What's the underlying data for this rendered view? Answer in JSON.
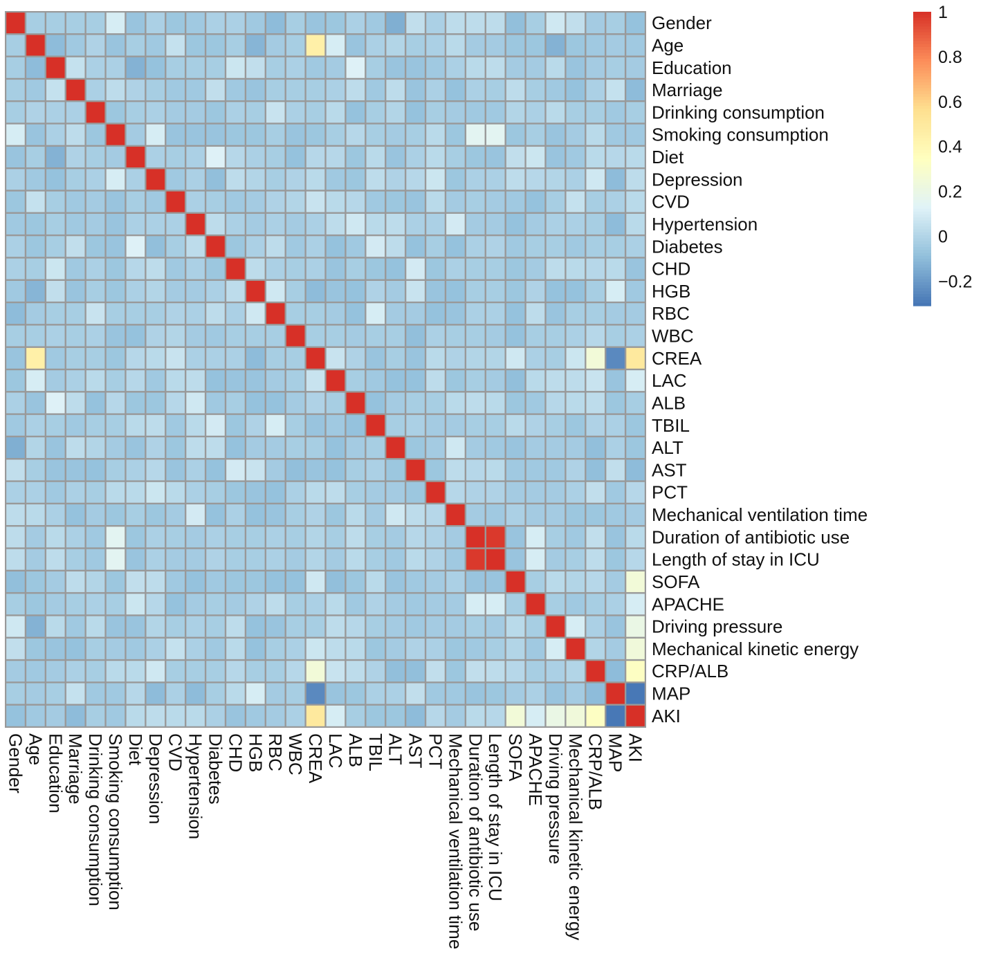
{
  "chart_data": {
    "type": "heatmap",
    "title": "",
    "row_labels": [
      "Gender",
      "Age",
      "Education",
      "Marriage",
      "Drinking consumption",
      "Smoking consumption",
      "Diet",
      "Depression",
      "CVD",
      "Hypertension",
      "Diabetes",
      "CHD",
      "HGB",
      "RBC",
      "WBC",
      "CREA",
      "LAC",
      "ALB",
      "TBIL",
      "ALT",
      "AST",
      "PCT",
      "Mechanical ventilation time",
      "Duration of antibiotic use",
      "Length of stay in ICU",
      "SOFA",
      "APACHE",
      "Driving pressure",
      "Mechanical kinetic energy",
      "CRP/ALB",
      "MAP",
      "AKI"
    ],
    "col_labels": [
      "Gender",
      "Age",
      "Education",
      "Marriage",
      "Drinking consumption",
      "Smoking consumption",
      "Diet",
      "Depression",
      "CVD",
      "Hypertension",
      "Diabetes",
      "CHD",
      "HGB",
      "RBC",
      "WBC",
      "CREA",
      "LAC",
      "ALB",
      "TBIL",
      "ALT",
      "AST",
      "PCT",
      "Mechanical ventilation time",
      "Duration of antibiotic use",
      "Length of stay in ICU",
      "SOFA",
      "APACHE",
      "Driving pressure",
      "Mechanical kinetic energy",
      "CRP/ALB",
      "MAP",
      "AKI"
    ],
    "values": [
      [
        1,
        -0.03,
        -0.03,
        -0.03,
        -0.03,
        0.1,
        -0.07,
        -0.02,
        -0.06,
        -0.05,
        -0.02,
        -0.02,
        -0.05,
        -0.1,
        -0.03,
        -0.07,
        -0.06,
        -0.02,
        -0.05,
        -0.14,
        0.04,
        -0.02,
        0.03,
        0.03,
        0.03,
        -0.09,
        -0.03,
        0.08,
        0.04,
        -0.04,
        -0.03,
        -0.08
      ],
      [
        -0.03,
        1,
        -0.1,
        -0.05,
        -0.01,
        -0.07,
        -0.03,
        -0.05,
        0.05,
        -0.06,
        -0.06,
        -0.03,
        -0.12,
        -0.04,
        -0.03,
        0.45,
        0.1,
        -0.07,
        -0.02,
        0.0,
        -0.03,
        -0.02,
        0.02,
        -0.04,
        -0.04,
        -0.06,
        -0.06,
        -0.13,
        -0.06,
        -0.05,
        -0.04,
        -0.05
      ],
      [
        -0.03,
        -0.1,
        1,
        0.05,
        -0.02,
        -0.02,
        -0.13,
        -0.08,
        -0.03,
        -0.03,
        -0.03,
        0.07,
        0.04,
        -0.03,
        -0.02,
        -0.05,
        -0.04,
        0.12,
        -0.03,
        -0.07,
        -0.07,
        -0.05,
        -0.02,
        0.02,
        0.03,
        -0.04,
        -0.04,
        0.02,
        -0.07,
        -0.04,
        -0.03,
        -0.04
      ],
      [
        -0.03,
        -0.05,
        0.05,
        1,
        -0.02,
        0.03,
        -0.01,
        -0.03,
        -0.05,
        -0.05,
        0.04,
        -0.05,
        -0.07,
        -0.03,
        -0.03,
        -0.03,
        -0.02,
        0.03,
        -0.05,
        0.03,
        -0.07,
        -0.02,
        -0.08,
        -0.02,
        -0.03,
        0.03,
        -0.03,
        -0.05,
        -0.08,
        -0.02,
        0.05,
        -0.1
      ],
      [
        -0.03,
        -0.01,
        -0.02,
        -0.02,
        1,
        -0.06,
        -0.03,
        -0.02,
        -0.04,
        -0.04,
        -0.06,
        -0.02,
        -0.03,
        0.06,
        -0.02,
        -0.03,
        0.02,
        -0.08,
        -0.03,
        0.0,
        -0.08,
        -0.03,
        -0.04,
        -0.05,
        -0.05,
        0.0,
        -0.02,
        0.02,
        -0.03,
        -0.03,
        -0.05,
        -0.03
      ],
      [
        0.1,
        -0.07,
        -0.02,
        0.03,
        -0.06,
        1,
        -0.04,
        0.1,
        -0.07,
        -0.07,
        -0.07,
        -0.06,
        -0.06,
        -0.03,
        -0.07,
        -0.06,
        -0.03,
        0.01,
        -0.03,
        -0.04,
        -0.03,
        0.02,
        -0.06,
        0.15,
        0.15,
        -0.06,
        -0.03,
        -0.07,
        -0.04,
        0.02,
        -0.05,
        -0.05
      ],
      [
        -0.07,
        -0.03,
        -0.13,
        -0.01,
        -0.03,
        -0.04,
        1,
        -0.02,
        -0.03,
        -0.02,
        0.12,
        0.01,
        -0.02,
        -0.03,
        -0.08,
        0.01,
        0.01,
        -0.06,
        0.02,
        -0.07,
        -0.02,
        0.02,
        -0.03,
        -0.06,
        -0.07,
        0.04,
        0.07,
        -0.07,
        -0.05,
        0.02,
        0.01,
        0.02
      ],
      [
        -0.02,
        -0.05,
        -0.08,
        -0.03,
        -0.02,
        0.1,
        -0.02,
        1,
        -0.05,
        -0.02,
        -0.09,
        0.03,
        0.0,
        -0.03,
        -0.01,
        0.02,
        -0.05,
        -0.06,
        0.03,
        -0.01,
        0.01,
        0.07,
        -0.06,
        -0.02,
        -0.02,
        0.03,
        0.01,
        0.0,
        -0.02,
        0.08,
        -0.1,
        0.03
      ],
      [
        -0.06,
        0.05,
        -0.03,
        -0.05,
        -0.04,
        -0.07,
        -0.03,
        -0.05,
        1,
        -0.02,
        -0.03,
        -0.05,
        -0.04,
        -0.01,
        0.0,
        0.06,
        0.02,
        0.01,
        -0.05,
        -0.06,
        -0.07,
        0.02,
        -0.04,
        -0.03,
        -0.04,
        -0.05,
        -0.08,
        -0.03,
        0.05,
        -0.03,
        -0.02,
        0.02
      ],
      [
        -0.05,
        -0.06,
        -0.03,
        -0.05,
        -0.04,
        -0.07,
        -0.02,
        -0.02,
        -0.02,
        1,
        0.03,
        -0.02,
        -0.04,
        -0.02,
        -0.04,
        -0.02,
        0.03,
        0.08,
        0.02,
        0.03,
        -0.02,
        -0.02,
        0.09,
        -0.04,
        -0.04,
        -0.08,
        -0.04,
        -0.02,
        -0.02,
        -0.03,
        -0.1,
        0.02
      ],
      [
        -0.02,
        -0.06,
        -0.03,
        0.04,
        -0.06,
        -0.07,
        0.12,
        -0.09,
        -0.03,
        0.03,
        1,
        -0.06,
        -0.02,
        0.03,
        -0.05,
        -0.02,
        -0.08,
        -0.05,
        0.09,
        0.03,
        -0.08,
        -0.03,
        -0.08,
        -0.02,
        -0.01,
        -0.05,
        -0.03,
        -0.03,
        -0.05,
        -0.03,
        -0.03,
        -0.02
      ],
      [
        -0.02,
        -0.03,
        0.07,
        -0.05,
        -0.02,
        -0.06,
        0.01,
        0.03,
        -0.05,
        -0.02,
        -0.06,
        1,
        0.03,
        -0.02,
        -0.03,
        -0.02,
        -0.07,
        -0.03,
        -0.06,
        -0.08,
        0.09,
        -0.06,
        -0.02,
        -0.03,
        -0.03,
        -0.06,
        -0.04,
        0.03,
        0.02,
        0.01,
        0.02,
        -0.07
      ],
      [
        -0.05,
        -0.12,
        0.04,
        -0.07,
        -0.03,
        -0.06,
        -0.02,
        0.0,
        -0.04,
        -0.04,
        -0.02,
        0.03,
        1,
        0.08,
        -0.03,
        -0.1,
        -0.07,
        -0.08,
        -0.01,
        -0.04,
        0.06,
        -0.07,
        -0.08,
        -0.03,
        -0.03,
        -0.06,
        -0.01,
        -0.08,
        -0.08,
        -0.03,
        0.1,
        -0.05
      ],
      [
        -0.1,
        -0.04,
        -0.03,
        -0.03,
        0.06,
        -0.03,
        -0.03,
        -0.03,
        -0.01,
        -0.02,
        0.03,
        -0.02,
        0.08,
        1,
        -0.03,
        -0.03,
        -0.04,
        -0.08,
        0.1,
        -0.04,
        -0.04,
        -0.08,
        -0.07,
        -0.02,
        -0.02,
        -0.08,
        0.03,
        -0.07,
        -0.03,
        -0.03,
        -0.04,
        -0.04
      ],
      [
        -0.03,
        -0.03,
        -0.02,
        -0.03,
        -0.02,
        -0.07,
        -0.08,
        -0.01,
        0.0,
        -0.04,
        -0.05,
        -0.03,
        -0.03,
        -0.03,
        1,
        -0.03,
        -0.03,
        -0.04,
        -0.03,
        -0.03,
        -0.09,
        -0.02,
        -0.03,
        -0.03,
        -0.04,
        -0.08,
        -0.03,
        -0.03,
        -0.02,
        0.01,
        -0.03,
        -0.02
      ],
      [
        -0.07,
        0.45,
        -0.05,
        -0.03,
        -0.03,
        -0.06,
        0.01,
        0.02,
        0.06,
        -0.02,
        -0.02,
        -0.02,
        -0.1,
        -0.03,
        -0.03,
        1,
        0.06,
        -0.01,
        -0.07,
        -0.03,
        -0.07,
        0.02,
        -0.01,
        0.0,
        0.0,
        0.08,
        -0.02,
        -0.03,
        0.07,
        0.25,
        -0.25,
        0.5
      ],
      [
        -0.06,
        0.1,
        -0.04,
        -0.02,
        0.02,
        -0.03,
        0.01,
        -0.05,
        0.02,
        0.03,
        -0.08,
        -0.07,
        -0.07,
        -0.04,
        -0.03,
        0.06,
        1,
        -0.03,
        -0.05,
        -0.08,
        -0.08,
        0.03,
        -0.06,
        -0.03,
        -0.04,
        -0.09,
        0.02,
        0.03,
        0.03,
        0.06,
        -0.07,
        0.1
      ],
      [
        -0.02,
        -0.07,
        0.12,
        0.03,
        -0.08,
        0.01,
        -0.06,
        -0.06,
        0.01,
        0.08,
        -0.05,
        -0.03,
        -0.08,
        -0.08,
        -0.04,
        -0.01,
        -0.03,
        1,
        -0.08,
        -0.04,
        -0.03,
        -0.03,
        0.02,
        0.03,
        0.02,
        -0.06,
        -0.05,
        0.01,
        0.02,
        0.03,
        -0.06,
        -0.03
      ],
      [
        -0.05,
        -0.02,
        -0.03,
        -0.05,
        -0.03,
        -0.03,
        0.02,
        0.03,
        -0.05,
        0.02,
        0.09,
        -0.06,
        -0.01,
        0.1,
        -0.03,
        -0.07,
        -0.05,
        -0.08,
        1,
        -0.03,
        -0.02,
        -0.04,
        -0.04,
        -0.03,
        -0.03,
        0.02,
        -0.01,
        -0.03,
        -0.06,
        -0.01,
        -0.02,
        -0.06
      ],
      [
        -0.14,
        0.0,
        -0.07,
        0.03,
        0.0,
        -0.04,
        -0.07,
        -0.01,
        -0.06,
        0.03,
        0.03,
        -0.08,
        -0.04,
        -0.04,
        -0.03,
        -0.03,
        -0.08,
        -0.04,
        -0.03,
        1,
        -0.06,
        -0.04,
        0.08,
        -0.04,
        -0.05,
        -0.07,
        -0.04,
        -0.04,
        -0.04,
        -0.09,
        -0.02,
        -0.06
      ],
      [
        0.04,
        -0.03,
        -0.07,
        -0.07,
        -0.08,
        -0.03,
        -0.02,
        0.01,
        -0.07,
        -0.02,
        -0.08,
        0.09,
        0.06,
        -0.04,
        -0.09,
        -0.07,
        -0.08,
        -0.03,
        -0.02,
        -0.06,
        1,
        -0.06,
        0.03,
        0.01,
        0.02,
        -0.05,
        -0.05,
        -0.05,
        -0.01,
        -0.09,
        0.04,
        -0.1
      ],
      [
        -0.02,
        -0.02,
        -0.05,
        -0.02,
        -0.03,
        0.02,
        0.02,
        0.07,
        0.02,
        -0.02,
        -0.03,
        -0.06,
        -0.07,
        -0.08,
        -0.02,
        0.02,
        0.03,
        -0.03,
        -0.04,
        -0.04,
        -0.06,
        1,
        0.01,
        -0.01,
        -0.01,
        -0.04,
        -0.04,
        -0.04,
        -0.02,
        0.04,
        -0.05,
        0.01
      ],
      [
        0.03,
        0.02,
        -0.02,
        -0.08,
        -0.04,
        -0.06,
        -0.03,
        -0.06,
        -0.04,
        0.09,
        -0.08,
        -0.02,
        -0.08,
        -0.07,
        -0.03,
        -0.01,
        -0.06,
        0.02,
        -0.04,
        0.08,
        0.03,
        0.01,
        1,
        -0.04,
        -0.05,
        -0.02,
        -0.04,
        -0.04,
        -0.06,
        -0.06,
        -0.05,
        -0.04
      ],
      [
        0.03,
        -0.04,
        0.02,
        -0.02,
        -0.05,
        0.15,
        -0.06,
        -0.02,
        -0.03,
        -0.04,
        -0.02,
        -0.03,
        -0.03,
        -0.02,
        -0.03,
        0.0,
        -0.03,
        0.03,
        -0.03,
        -0.04,
        0.01,
        -0.01,
        -0.04,
        1,
        0.98,
        -0.07,
        0.1,
        -0.03,
        -0.05,
        0.04,
        -0.07,
        0.02
      ],
      [
        0.03,
        -0.04,
        0.03,
        -0.03,
        -0.05,
        0.15,
        -0.07,
        -0.02,
        -0.04,
        -0.04,
        -0.01,
        -0.03,
        -0.03,
        -0.02,
        -0.04,
        0.0,
        -0.04,
        0.02,
        -0.03,
        -0.05,
        0.02,
        -0.01,
        -0.05,
        0.98,
        1,
        -0.07,
        0.1,
        -0.04,
        -0.03,
        0.03,
        -0.06,
        0.01
      ],
      [
        -0.09,
        -0.06,
        -0.04,
        0.03,
        0.0,
        -0.06,
        0.04,
        0.03,
        -0.05,
        -0.08,
        -0.05,
        -0.06,
        -0.06,
        -0.08,
        -0.08,
        0.08,
        -0.09,
        -0.06,
        0.02,
        -0.07,
        -0.05,
        -0.04,
        -0.02,
        -0.07,
        -0.07,
        1,
        -0.03,
        0.02,
        0.0,
        0.01,
        -0.04,
        0.25
      ],
      [
        -0.03,
        -0.06,
        -0.04,
        -0.03,
        -0.02,
        -0.03,
        0.07,
        0.01,
        -0.08,
        -0.04,
        -0.03,
        -0.04,
        -0.01,
        0.03,
        -0.03,
        -0.02,
        0.02,
        -0.05,
        -0.01,
        -0.04,
        -0.05,
        -0.04,
        -0.04,
        0.1,
        0.1,
        -0.03,
        1,
        -0.03,
        -0.05,
        -0.03,
        -0.02,
        0.1
      ],
      [
        0.08,
        -0.13,
        0.02,
        -0.05,
        0.02,
        -0.07,
        -0.07,
        0.0,
        -0.03,
        -0.02,
        -0.03,
        0.03,
        -0.08,
        -0.07,
        -0.03,
        -0.03,
        0.03,
        0.01,
        -0.03,
        -0.04,
        -0.05,
        -0.04,
        -0.04,
        -0.03,
        -0.04,
        0.02,
        -0.03,
        1,
        0.1,
        -0.02,
        -0.07,
        0.2
      ],
      [
        0.04,
        -0.06,
        -0.07,
        -0.08,
        -0.03,
        -0.04,
        -0.05,
        -0.02,
        0.05,
        -0.02,
        -0.05,
        0.02,
        -0.08,
        -0.03,
        -0.02,
        0.07,
        0.03,
        0.02,
        -0.06,
        -0.04,
        -0.01,
        -0.02,
        -0.06,
        -0.05,
        -0.03,
        0.0,
        -0.05,
        0.1,
        1,
        0.0,
        -0.04,
        0.24
      ],
      [
        -0.04,
        -0.05,
        -0.04,
        -0.02,
        -0.03,
        0.02,
        0.02,
        0.08,
        -0.03,
        -0.03,
        -0.03,
        0.01,
        -0.03,
        -0.03,
        0.01,
        0.25,
        0.06,
        0.03,
        -0.01,
        -0.09,
        -0.09,
        0.04,
        -0.06,
        0.04,
        0.03,
        0.01,
        -0.03,
        -0.02,
        0.0,
        1,
        -0.1,
        0.33
      ],
      [
        -0.03,
        -0.04,
        -0.03,
        0.05,
        -0.05,
        -0.05,
        0.01,
        -0.1,
        -0.02,
        -0.1,
        -0.03,
        0.02,
        0.1,
        -0.04,
        -0.03,
        -0.25,
        -0.07,
        -0.06,
        -0.02,
        -0.02,
        0.04,
        -0.05,
        -0.05,
        -0.07,
        -0.06,
        -0.04,
        -0.02,
        -0.07,
        -0.04,
        -0.1,
        1,
        -0.3
      ],
      [
        -0.08,
        -0.05,
        -0.04,
        -0.1,
        -0.03,
        -0.05,
        0.02,
        0.03,
        0.02,
        0.02,
        -0.02,
        -0.07,
        -0.05,
        -0.04,
        -0.02,
        0.5,
        0.1,
        -0.03,
        -0.06,
        -0.06,
        -0.1,
        0.01,
        -0.04,
        0.02,
        0.01,
        0.25,
        0.1,
        0.2,
        0.24,
        0.33,
        -0.3,
        1
      ]
    ],
    "color_scale": {
      "min": -0.31,
      "max": 1,
      "colors": [
        "#4575B4",
        "#91BFDB",
        "#E0F3F8",
        "#FFFFBF",
        "#FEE090",
        "#FC8D59",
        "#D73027"
      ],
      "ticks": [
        1,
        0.8,
        0.6,
        0.4,
        0.2,
        0,
        -0.2
      ],
      "tick_labels": [
        "1",
        "0.8",
        "0.6",
        "0.4",
        "0.2",
        "0",
        "−0.2"
      ]
    },
    "cell_border_color": "#999999",
    "legend_placement": "right"
  }
}
